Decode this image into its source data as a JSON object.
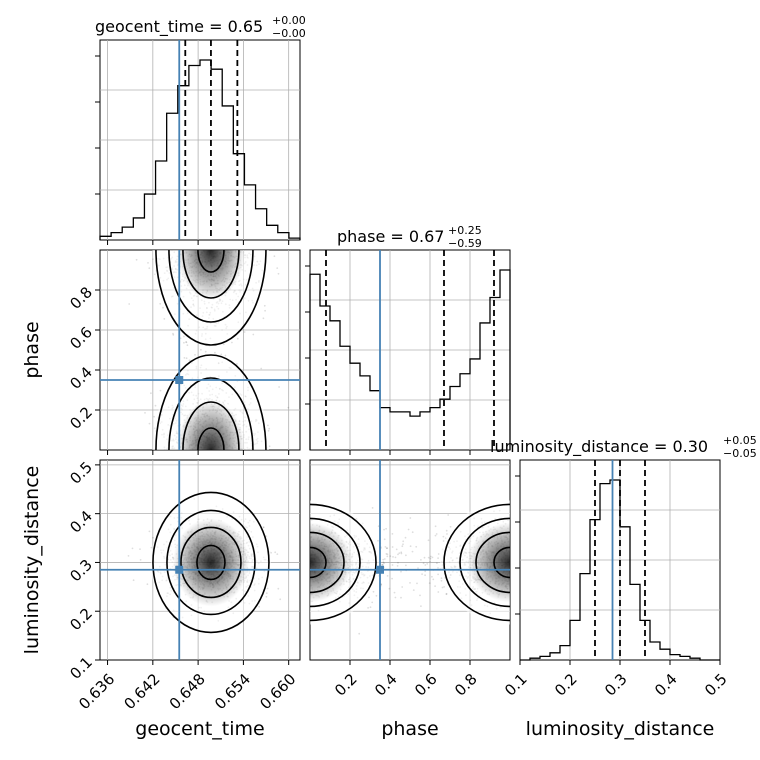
{
  "chart_data": {
    "type": "corner",
    "parameters": [
      "geocent_time",
      "phase",
      "luminosity_distance"
    ],
    "panels": {
      "geocent_time": {
        "title_param": "geocent_time",
        "title_value": "0.65",
        "title_plus": "+0.00",
        "title_minus": "−0.00",
        "xlim": [
          0.635,
          0.6615
        ],
        "ticks": [
          0.636,
          0.642,
          0.648,
          0.654,
          0.66
        ],
        "tick_labels": [
          "0.636",
          "0.642",
          "0.648",
          "0.654",
          "0.660"
        ],
        "axis_label": "geocent_time",
        "truth": 0.6455,
        "quantiles": [
          0.6463,
          0.6497,
          0.6532
        ],
        "hist_counts": [
          0.02,
          0.04,
          0.07,
          0.12,
          0.25,
          0.43,
          0.69,
          0.84,
          0.95,
          0.98,
          0.93,
          0.73,
          0.47,
          0.3,
          0.17,
          0.08,
          0.04,
          0.01
        ]
      },
      "phase": {
        "title_param": "phase",
        "title_value": "0.67",
        "title_plus": "+0.25",
        "title_minus": "−0.59",
        "xlim": [
          0.0,
          1.0
        ],
        "ticks": [
          0.2,
          0.4,
          0.6,
          0.8
        ],
        "tick_labels": [
          "0.2",
          "0.4",
          "0.6",
          "0.8"
        ],
        "y_ticks": [
          0.2,
          0.4,
          0.6,
          0.8
        ],
        "y_tick_labels": [
          "0.2",
          "0.4",
          "0.6",
          "0.8"
        ],
        "axis_label": "phase",
        "truth": 0.35,
        "quantiles": [
          0.08,
          0.67,
          0.92
        ],
        "hist_counts": [
          0.83,
          0.68,
          0.61,
          0.49,
          0.41,
          0.35,
          0.28,
          0.2,
          0.18,
          0.18,
          0.16,
          0.18,
          0.2,
          0.24,
          0.3,
          0.36,
          0.43,
          0.6,
          0.72,
          0.85
        ]
      },
      "luminosity_distance": {
        "title_param": "luminosity_distance",
        "title_value": "0.30",
        "title_plus": "+0.05",
        "title_minus": "−0.05",
        "xlim": [
          0.1,
          0.5
        ],
        "ticks": [
          0.1,
          0.2,
          0.3,
          0.4,
          0.5
        ],
        "tick_labels": [
          "0.1",
          "0.2",
          "0.3",
          "0.4",
          "0.5"
        ],
        "y_ticks": [
          0.1,
          0.2,
          0.3,
          0.4,
          0.5
        ],
        "y_tick_labels": [
          "0.1",
          "0.2",
          "0.3",
          "0.4",
          "0.5"
        ],
        "axis_label": "luminosity_distance",
        "truth": 0.285,
        "quantiles": [
          0.25,
          0.3,
          0.35
        ],
        "hist_counts": [
          0.0,
          0.01,
          0.02,
          0.04,
          0.08,
          0.22,
          0.48,
          0.78,
          0.98,
          1.0,
          0.74,
          0.42,
          0.22,
          0.1,
          0.06,
          0.03,
          0.02,
          0.01,
          0.0,
          0.0
        ]
      }
    },
    "truth_color": "#4682b4",
    "contour_color": "#000000",
    "grid": true
  }
}
